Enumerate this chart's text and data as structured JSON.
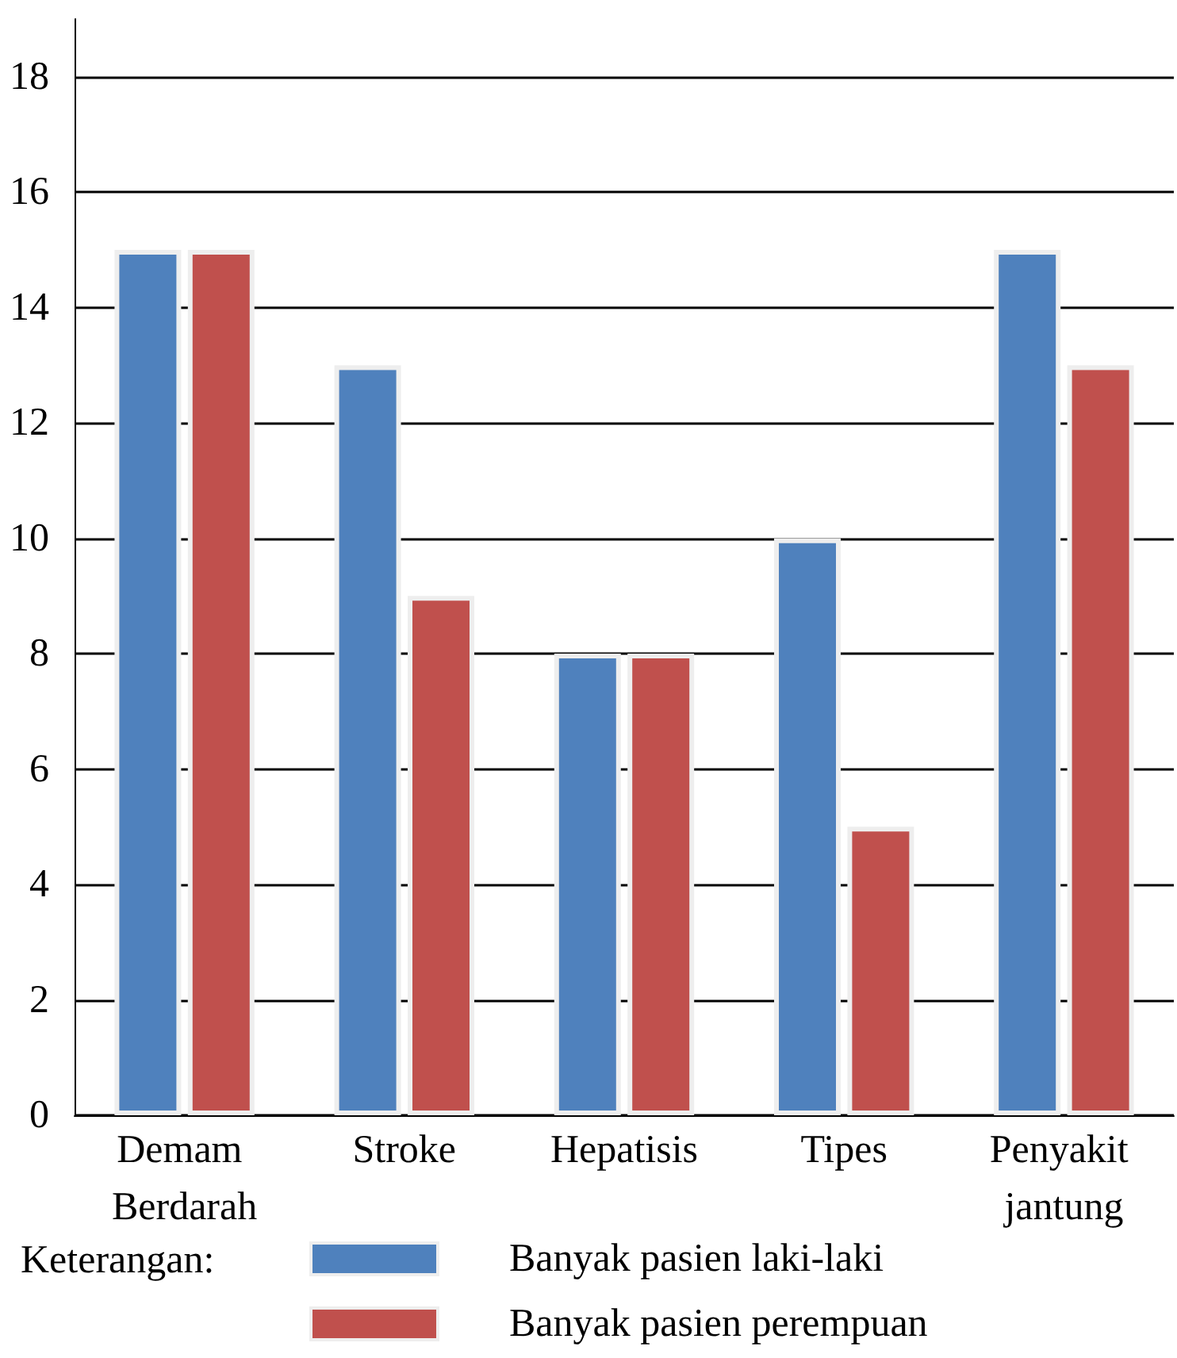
{
  "chart_data": {
    "type": "bar",
    "categories": [
      "Demam Berdarah",
      "Stroke",
      "Hepatisis",
      "Tipes",
      "Penyakit jantung"
    ],
    "series": [
      {
        "name": "Banyak pasien laki-laki",
        "color": "#4f81bd",
        "values": [
          15,
          13,
          8,
          10,
          15
        ]
      },
      {
        "name": "Banyak pasien perempuan",
        "color": "#c0504d",
        "values": [
          15,
          9,
          8,
          5,
          13
        ]
      }
    ],
    "ylim": [
      0,
      19
    ],
    "yticks": [
      0,
      2,
      4,
      6,
      8,
      10,
      12,
      14,
      16,
      18
    ],
    "grid": "y",
    "legend": "bottom left",
    "legend_title": "Keterangan:"
  }
}
